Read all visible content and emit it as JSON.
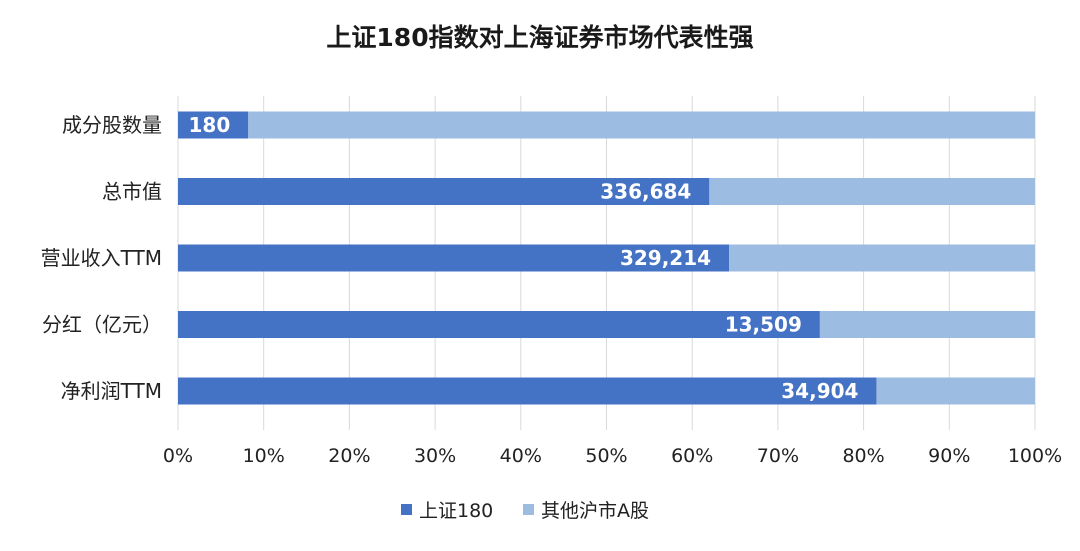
{
  "chart_data": {
    "type": "bar",
    "orientation": "horizontal",
    "stacked": "percent",
    "title": "上证180指数对上海证券市场代表性强",
    "categories": [
      "成分股数量",
      "总市值",
      "营业收入TTM",
      "分红（亿元）",
      "净利润TTM"
    ],
    "series": [
      {
        "name": "上证180",
        "color": "#4472C4",
        "values": [
          8.2,
          62.0,
          64.3,
          74.9,
          81.5
        ]
      },
      {
        "name": "其他沪市A股",
        "color": "#9DBCE1",
        "values": [
          91.8,
          38.0,
          35.7,
          25.1,
          18.5
        ]
      }
    ],
    "data_labels": [
      "180",
      "336,684",
      "329,214",
      "13,509",
      "34,904"
    ],
    "x_ticks": [
      "0%",
      "10%",
      "20%",
      "30%",
      "40%",
      "50%",
      "60%",
      "70%",
      "80%",
      "90%",
      "100%"
    ],
    "xlim": [
      0,
      100
    ],
    "grid": "vertical",
    "legend_position": "bottom"
  }
}
